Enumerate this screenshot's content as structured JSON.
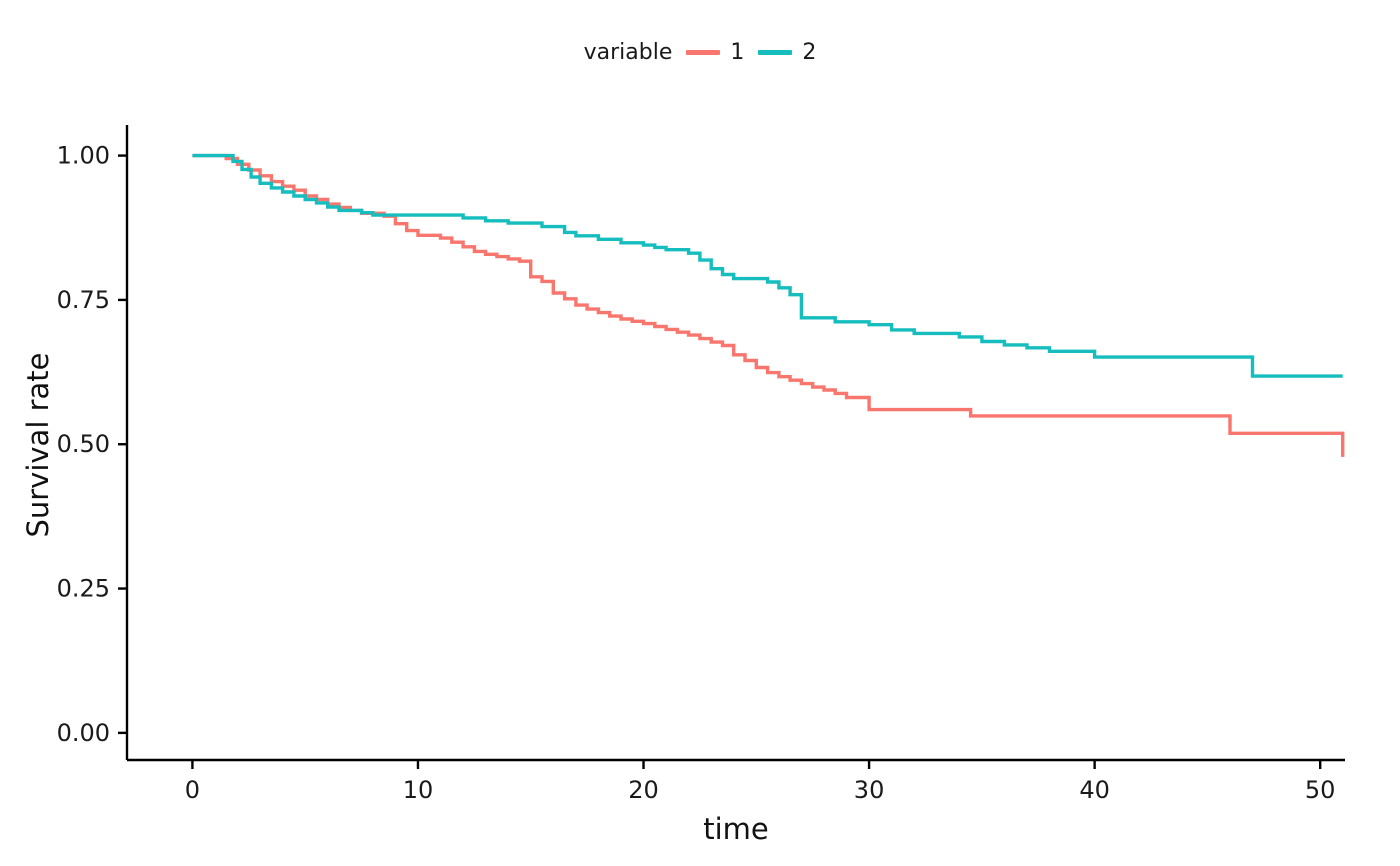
{
  "page": {
    "background": "#ffffff"
  },
  "chart_data": {
    "type": "line",
    "subtype": "step-survival-curve",
    "title": "",
    "xlabel": "time",
    "ylabel": "Survival rate",
    "xticks": [
      0,
      10,
      20,
      30,
      40,
      50
    ],
    "yticks": [
      0,
      0.25,
      0.5,
      0.75,
      1
    ],
    "ytick_labels": [
      "0.00",
      "0.25",
      "0.50",
      "0.75",
      "1.00"
    ],
    "xlim": [
      -2.9,
      51.1
    ],
    "ylim": [
      -0.047,
      1.053
    ],
    "grid": false,
    "legend": {
      "title": "variable",
      "position": "top-center"
    },
    "axis_color": "#000000",
    "text_color": "#1a1a1a",
    "series": [
      {
        "name": "1",
        "color": "#F8766D",
        "points": [
          [
            0,
            1.0
          ],
          [
            1.5,
            0.995
          ],
          [
            2,
            0.985
          ],
          [
            2.5,
            0.975
          ],
          [
            3,
            0.965
          ],
          [
            3.5,
            0.955
          ],
          [
            4,
            0.947
          ],
          [
            4.5,
            0.94
          ],
          [
            5,
            0.93
          ],
          [
            5.5,
            0.924
          ],
          [
            6,
            0.916
          ],
          [
            6.5,
            0.91
          ],
          [
            7,
            0.905
          ],
          [
            7.5,
            0.9
          ],
          [
            8.5,
            0.895
          ],
          [
            9,
            0.882
          ],
          [
            9.5,
            0.87
          ],
          [
            10,
            0.862
          ],
          [
            11,
            0.857
          ],
          [
            11.5,
            0.85
          ],
          [
            12,
            0.842
          ],
          [
            12.5,
            0.834
          ],
          [
            13,
            0.829
          ],
          [
            13.5,
            0.825
          ],
          [
            14,
            0.821
          ],
          [
            14.5,
            0.817
          ],
          [
            15,
            0.79
          ],
          [
            15.5,
            0.782
          ],
          [
            16,
            0.762
          ],
          [
            16.5,
            0.752
          ],
          [
            17,
            0.741
          ],
          [
            17.5,
            0.734
          ],
          [
            18,
            0.728
          ],
          [
            18.5,
            0.722
          ],
          [
            19,
            0.717
          ],
          [
            19.5,
            0.713
          ],
          [
            20,
            0.709
          ],
          [
            20.5,
            0.704
          ],
          [
            21,
            0.699
          ],
          [
            21.5,
            0.694
          ],
          [
            22,
            0.689
          ],
          [
            22.5,
            0.683
          ],
          [
            23,
            0.677
          ],
          [
            23.5,
            0.671
          ],
          [
            24,
            0.655
          ],
          [
            24.5,
            0.645
          ],
          [
            25,
            0.633
          ],
          [
            25.5,
            0.624
          ],
          [
            26,
            0.617
          ],
          [
            26.5,
            0.611
          ],
          [
            27,
            0.605
          ],
          [
            27.5,
            0.599
          ],
          [
            28,
            0.594
          ],
          [
            28.5,
            0.588
          ],
          [
            29,
            0.581
          ],
          [
            30,
            0.56
          ],
          [
            34.5,
            0.549
          ],
          [
            46,
            0.519
          ],
          [
            51,
            0.478
          ]
        ]
      },
      {
        "name": "2",
        "color": "#15BDBE",
        "points": [
          [
            0,
            1.0
          ],
          [
            1.8,
            0.99
          ],
          [
            2.2,
            0.976
          ],
          [
            2.6,
            0.963
          ],
          [
            3,
            0.952
          ],
          [
            3.5,
            0.944
          ],
          [
            4,
            0.937
          ],
          [
            4.5,
            0.93
          ],
          [
            5,
            0.924
          ],
          [
            5.5,
            0.918
          ],
          [
            6,
            0.911
          ],
          [
            6.5,
            0.905
          ],
          [
            7.5,
            0.901
          ],
          [
            8,
            0.897
          ],
          [
            12,
            0.892
          ],
          [
            13,
            0.887
          ],
          [
            14,
            0.883
          ],
          [
            15.5,
            0.877
          ],
          [
            16.5,
            0.867
          ],
          [
            17,
            0.861
          ],
          [
            18,
            0.855
          ],
          [
            19,
            0.849
          ],
          [
            20,
            0.845
          ],
          [
            20.5,
            0.841
          ],
          [
            21,
            0.837
          ],
          [
            22,
            0.831
          ],
          [
            22.5,
            0.819
          ],
          [
            23,
            0.804
          ],
          [
            23.5,
            0.794
          ],
          [
            24,
            0.787
          ],
          [
            25.5,
            0.781
          ],
          [
            26,
            0.771
          ],
          [
            26.5,
            0.759
          ],
          [
            27,
            0.719
          ],
          [
            28.5,
            0.712
          ],
          [
            30,
            0.707
          ],
          [
            31,
            0.698
          ],
          [
            32,
            0.692
          ],
          [
            34,
            0.686
          ],
          [
            35,
            0.678
          ],
          [
            36,
            0.672
          ],
          [
            37,
            0.667
          ],
          [
            38,
            0.661
          ],
          [
            40,
            0.651
          ],
          [
            47,
            0.618
          ],
          [
            51,
            0.618
          ]
        ]
      }
    ]
  }
}
